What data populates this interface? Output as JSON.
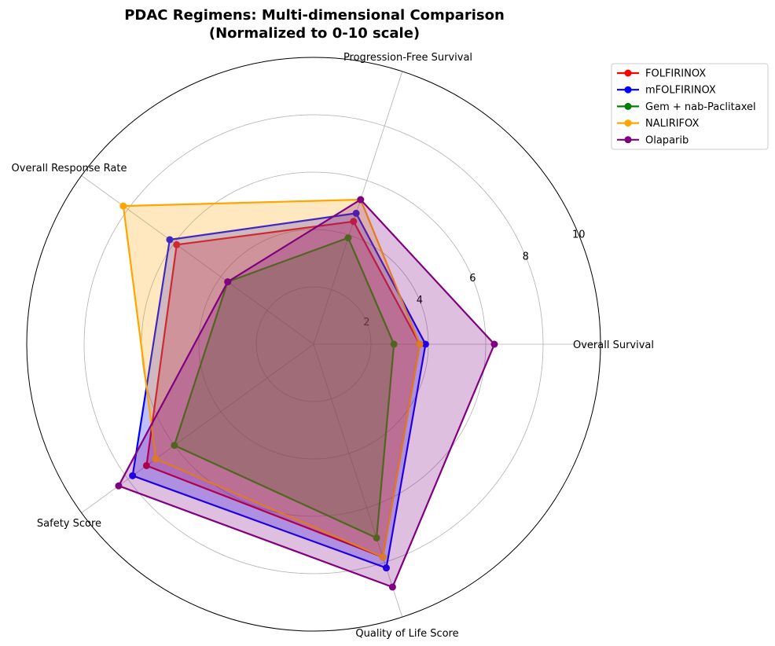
{
  "chart_data": {
    "type": "radar",
    "title": [
      "PDAC Regimens: Multi-dimensional Comparison",
      "(Normalized to 0-10 scale)"
    ],
    "axes": [
      "Overall Survival",
      "Progression-Free Survival",
      "Overall Response Rate",
      "Safety Score",
      "Quality of Life Score"
    ],
    "rlim": [
      0,
      10
    ],
    "rticks": [
      2,
      4,
      6,
      8,
      10
    ],
    "grid": true,
    "legend_position": "top-right outside",
    "series": [
      {
        "name": "FOLFIRINOX",
        "color": "#ff0000",
        "values": [
          3.7,
          4.5,
          5.9,
          7.2,
          7.8
        ]
      },
      {
        "name": "mFOLFIRINOX",
        "color": "#0000ff",
        "values": [
          3.9,
          4.8,
          6.2,
          7.8,
          8.2
        ]
      },
      {
        "name": "Gem + nab-Paclitaxel",
        "color": "#008000",
        "values": [
          2.8,
          3.9,
          3.7,
          6.0,
          7.1
        ]
      },
      {
        "name": "NALIRIFOX",
        "color": "#ffa500",
        "values": [
          3.7,
          5.3,
          8.2,
          6.8,
          7.8
        ]
      },
      {
        "name": "Olaparib",
        "color": "#800080",
        "values": [
          6.3,
          5.3,
          3.7,
          8.4,
          8.9
        ]
      }
    ]
  }
}
